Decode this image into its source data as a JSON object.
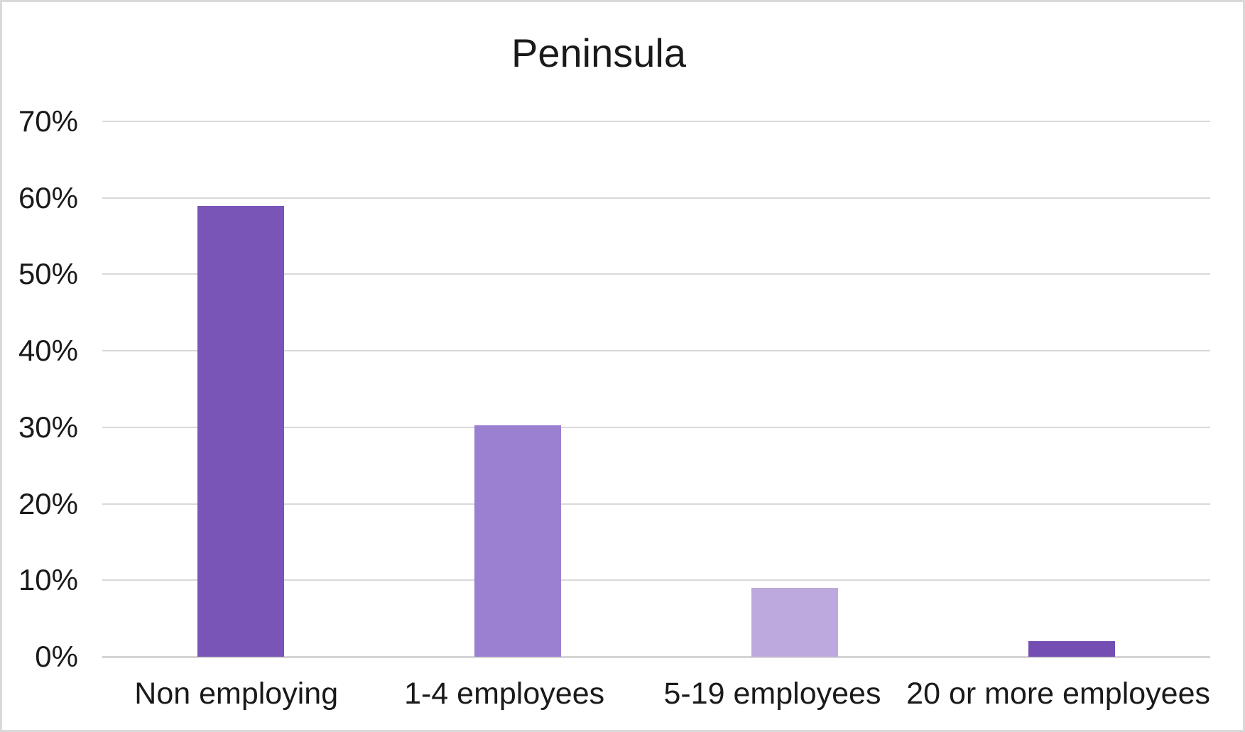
{
  "chart_data": {
    "type": "bar",
    "title": "Peninsula",
    "categories": [
      "Non employing",
      "1-4 employees",
      "5-19 employees",
      "20 or more employees"
    ],
    "values": [
      59,
      30.3,
      9,
      2
    ],
    "series_name": "",
    "xlabel": "",
    "ylabel": "",
    "ylim": [
      0,
      70
    ],
    "ytick_step": 10,
    "ytick_labels": [
      "0%",
      "10%",
      "20%",
      "30%",
      "40%",
      "50%",
      "60%",
      "70%"
    ],
    "grid": "horizontal",
    "legend": "none",
    "bar_colors": [
      "#7A55B8",
      "#9B80D1",
      "#BDA9DE",
      "#744EB2"
    ],
    "gridline_color": "#D9D9D9",
    "baseline_color": "#D4D4D4",
    "axis_text_color": "#1A1A1A",
    "title_color": "#1A1A1A",
    "background_color": "#FFFFFF",
    "border_color": "#D9D9D9"
  }
}
